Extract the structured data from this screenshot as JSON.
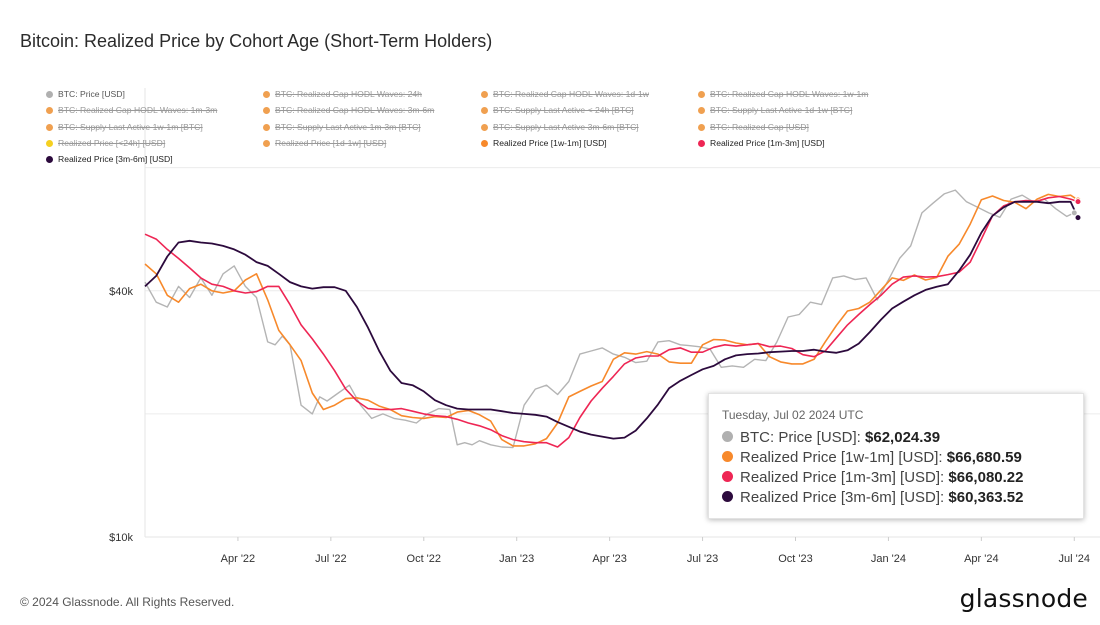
{
  "title": "Bitcoin: Realized Price by Cohort Age (Short-Term Holders)",
  "footer": "© 2024 Glassnode. All Rights Reserved.",
  "logo": "glassnode",
  "legend": [
    {
      "label": "BTC: Price [USD]",
      "color": "#b0b0b0",
      "active": true,
      "muted": true
    },
    {
      "label": "BTC: Realized Cap HODL Waves: 24h",
      "color": "#f0a050",
      "active": false
    },
    {
      "label": "BTC: Realized Cap HODL Waves: 1d-1w",
      "color": "#f0a050",
      "active": false
    },
    {
      "label": "BTC: Realized Cap HODL Waves: 1w-1m",
      "color": "#f0a050",
      "active": false
    },
    {
      "label": "BTC: Realized Cap HODL Waves: 1m-3m",
      "color": "#f0a050",
      "active": false
    },
    {
      "label": "BTC: Realized Cap HODL Waves: 3m-6m",
      "color": "#f0a050",
      "active": false
    },
    {
      "label": "BTC: Supply Last Active < 24h [BTC]",
      "color": "#f0a050",
      "active": false
    },
    {
      "label": "BTC: Supply Last Active 1d-1w [BTC]",
      "color": "#f0a050",
      "active": false
    },
    {
      "label": "BTC: Supply Last Active 1w-1m [BTC]",
      "color": "#f0a050",
      "active": false
    },
    {
      "label": "BTC: Supply Last Active 1m-3m [BTC]",
      "color": "#f0a050",
      "active": false
    },
    {
      "label": "BTC: Supply Last Active 3m-6m [BTC]",
      "color": "#f0a050",
      "active": false
    },
    {
      "label": "BTC: Realized Cap [USD]",
      "color": "#f0a050",
      "active": false
    },
    {
      "label": "Realized Price [<24h] [USD]",
      "color": "#f5d020",
      "active": false
    },
    {
      "label": "Realized Price [1d-1w] [USD]",
      "color": "#f0a050",
      "active": false
    },
    {
      "label": "Realized Price [1w-1m] [USD]",
      "color": "#f7892b",
      "active": true
    },
    {
      "label": "Realized Price [1m-3m] [USD]",
      "color": "#ee2654",
      "active": true
    },
    {
      "label": "Realized Price [3m-6m] [USD]",
      "color": "#2c0a3d",
      "active": true
    }
  ],
  "tooltip": {
    "date": "Tuesday, Jul 02 2024 UTC",
    "rows": [
      {
        "label": "BTC: Price [USD]:",
        "value": "$62,024.39",
        "color": "#b0b0b0"
      },
      {
        "label": "Realized Price [1w-1m] [USD]:",
        "value": "$66,680.59",
        "color": "#f7892b"
      },
      {
        "label": "Realized Price [1m-3m] [USD]:",
        "value": "$66,080.22",
        "color": "#ee2654"
      },
      {
        "label": "Realized Price [3m-6m] [USD]:",
        "value": "$60,363.52",
        "color": "#2c0a3d"
      }
    ]
  },
  "chart_data": {
    "type": "line",
    "title": "Bitcoin: Realized Price by Cohort Age (Short-Term Holders)",
    "yscale": "log",
    "ylim": [
      10000,
      100000
    ],
    "yticks": [
      {
        "label": "$40k",
        "value": 40000
      },
      {
        "label": "$10k",
        "value": 10000
      }
    ],
    "xlim": [
      2022.0,
      2024.51
    ],
    "xticks": [
      {
        "label": "Apr '22",
        "value": 2022.25
      },
      {
        "label": "Jul '22",
        "value": 2022.5
      },
      {
        "label": "Oct '22",
        "value": 2022.75
      },
      {
        "label": "Jan '23",
        "value": 2023.0
      },
      {
        "label": "Apr '23",
        "value": 2023.25
      },
      {
        "label": "Jul '23",
        "value": 2023.5
      },
      {
        "label": "Oct '23",
        "value": 2023.75
      },
      {
        "label": "Jan '24",
        "value": 2024.0
      },
      {
        "label": "Apr '24",
        "value": 2024.25
      },
      {
        "label": "Jul '24",
        "value": 2024.5
      }
    ],
    "series": [
      {
        "name": "BTC: Price [USD]",
        "color": "#b4b4b4",
        "width": 1.4,
        "x": [
          2022.0,
          2022.03,
          2022.06,
          2022.09,
          2022.12,
          2022.15,
          2022.18,
          2022.21,
          2022.24,
          2022.27,
          2022.3,
          2022.33,
          2022.35,
          2022.37,
          2022.39,
          2022.42,
          2022.45,
          2022.47,
          2022.49,
          2022.52,
          2022.55,
          2022.58,
          2022.61,
          2022.64,
          2022.67,
          2022.7,
          2022.73,
          2022.76,
          2022.79,
          2022.82,
          2022.84,
          2022.86,
          2022.88,
          2022.9,
          2022.93,
          2022.96,
          2022.99,
          2023.02,
          2023.05,
          2023.08,
          2023.11,
          2023.14,
          2023.17,
          2023.2,
          2023.23,
          2023.26,
          2023.29,
          2023.32,
          2023.35,
          2023.38,
          2023.41,
          2023.44,
          2023.46,
          2023.49,
          2023.52,
          2023.55,
          2023.58,
          2023.61,
          2023.64,
          2023.67,
          2023.7,
          2023.73,
          2023.76,
          2023.79,
          2023.82,
          2023.85,
          2023.88,
          2023.91,
          2023.94,
          2023.97,
          2024.0,
          2024.03,
          2024.06,
          2024.09,
          2024.12,
          2024.15,
          2024.18,
          2024.21,
          2024.24,
          2024.27,
          2024.3,
          2024.33,
          2024.36,
          2024.39,
          2024.42,
          2024.45,
          2024.48,
          2024.5
        ],
        "y": [
          42000,
          37500,
          36500,
          41000,
          38500,
          43000,
          39000,
          44000,
          46000,
          41000,
          38500,
          30000,
          29500,
          31000,
          29500,
          21000,
          20000,
          22000,
          21500,
          22500,
          23500,
          21000,
          19500,
          20000,
          19500,
          19300,
          19000,
          20000,
          20600,
          20500,
          16800,
          17000,
          16800,
          17200,
          16800,
          16600,
          16550,
          21000,
          23000,
          23500,
          22300,
          24000,
          28000,
          28500,
          29000,
          28000,
          27500,
          26700,
          26900,
          30000,
          30200,
          29500,
          29400,
          29200,
          28800,
          26000,
          26200,
          26000,
          27200,
          27000,
          30000,
          34500,
          35000,
          37500,
          37000,
          43000,
          43500,
          42600,
          43000,
          38000,
          42500,
          48000,
          51500,
          62000,
          65500,
          69000,
          70500,
          66000,
          64000,
          62000,
          60500,
          67000,
          68500,
          66000,
          67000,
          63500,
          60800,
          62024
        ]
      },
      {
        "name": "Realized Price [1w-1m] [USD]",
        "color": "#f7892b",
        "width": 1.6,
        "x": [
          2022.0,
          2022.03,
          2022.06,
          2022.09,
          2022.12,
          2022.15,
          2022.18,
          2022.21,
          2022.24,
          2022.27,
          2022.3,
          2022.33,
          2022.36,
          2022.39,
          2022.42,
          2022.45,
          2022.48,
          2022.51,
          2022.54,
          2022.57,
          2022.6,
          2022.63,
          2022.66,
          2022.69,
          2022.72,
          2022.75,
          2022.78,
          2022.81,
          2022.84,
          2022.87,
          2022.9,
          2022.93,
          2022.96,
          2022.99,
          2023.02,
          2023.05,
          2023.08,
          2023.11,
          2023.14,
          2023.17,
          2023.2,
          2023.23,
          2023.26,
          2023.29,
          2023.32,
          2023.35,
          2023.38,
          2023.41,
          2023.44,
          2023.47,
          2023.5,
          2023.53,
          2023.56,
          2023.59,
          2023.62,
          2023.65,
          2023.68,
          2023.71,
          2023.74,
          2023.77,
          2023.8,
          2023.83,
          2023.86,
          2023.89,
          2023.92,
          2023.95,
          2023.98,
          2024.01,
          2024.04,
          2024.07,
          2024.1,
          2024.13,
          2024.16,
          2024.19,
          2024.22,
          2024.25,
          2024.28,
          2024.31,
          2024.34,
          2024.37,
          2024.4,
          2024.43,
          2024.46,
          2024.49,
          2024.51
        ],
        "y": [
          46500,
          44000,
          39000,
          37500,
          40500,
          41500,
          40000,
          39500,
          40000,
          42500,
          44000,
          38000,
          32000,
          29500,
          27000,
          22500,
          20500,
          21000,
          21800,
          21900,
          21600,
          20900,
          20500,
          19800,
          19600,
          19500,
          19700,
          19600,
          20200,
          20400,
          19900,
          19200,
          17300,
          16700,
          16700,
          16900,
          17400,
          19000,
          22000,
          22700,
          23400,
          24000,
          27200,
          28200,
          28000,
          28400,
          28000,
          26800,
          26600,
          26600,
          29500,
          30400,
          30300,
          29800,
          29500,
          29700,
          27600,
          26800,
          26500,
          26500,
          27200,
          30000,
          32900,
          35700,
          36200,
          37500,
          40200,
          43000,
          42400,
          43700,
          42500,
          43100,
          48600,
          52000,
          58200,
          66800,
          68200,
          66500,
          65800,
          63500,
          67000,
          68800,
          68000,
          68500,
          66680
        ]
      },
      {
        "name": "Realized Price [1m-3m] [USD]",
        "color": "#ee2654",
        "width": 1.6,
        "x": [
          2022.0,
          2022.03,
          2022.06,
          2022.09,
          2022.12,
          2022.15,
          2022.18,
          2022.21,
          2022.24,
          2022.27,
          2022.3,
          2022.33,
          2022.36,
          2022.39,
          2022.42,
          2022.45,
          2022.48,
          2022.51,
          2022.54,
          2022.57,
          2022.6,
          2022.63,
          2022.66,
          2022.69,
          2022.72,
          2022.75,
          2022.78,
          2022.81,
          2022.84,
          2022.87,
          2022.9,
          2022.93,
          2022.96,
          2022.99,
          2023.02,
          2023.05,
          2023.08,
          2023.11,
          2023.14,
          2023.17,
          2023.2,
          2023.23,
          2023.26,
          2023.29,
          2023.32,
          2023.35,
          2023.38,
          2023.41,
          2023.44,
          2023.47,
          2023.5,
          2023.53,
          2023.56,
          2023.59,
          2023.62,
          2023.65,
          2023.68,
          2023.71,
          2023.74,
          2023.77,
          2023.8,
          2023.83,
          2023.86,
          2023.89,
          2023.92,
          2023.95,
          2023.98,
          2024.01,
          2024.04,
          2024.07,
          2024.1,
          2024.13,
          2024.16,
          2024.19,
          2024.22,
          2024.25,
          2024.28,
          2024.31,
          2024.34,
          2024.37,
          2024.4,
          2024.43,
          2024.46,
          2024.49,
          2024.51
        ],
        "y": [
          55000,
          53500,
          50500,
          48000,
          45500,
          43000,
          41500,
          41000,
          40000,
          39500,
          39800,
          41000,
          41000,
          37000,
          33000,
          30500,
          28000,
          25500,
          23000,
          21500,
          20600,
          20500,
          20500,
          20600,
          20300,
          20000,
          19800,
          19700,
          19400,
          19000,
          18700,
          18300,
          17700,
          17300,
          17100,
          17000,
          17000,
          16600,
          17500,
          19600,
          21500,
          23100,
          24700,
          26500,
          27400,
          27700,
          27700,
          28700,
          29000,
          28300,
          28300,
          29100,
          29500,
          29300,
          29500,
          29700,
          29200,
          29300,
          28900,
          27900,
          27600,
          28500,
          30700,
          33000,
          35000,
          37000,
          39000,
          41500,
          43200,
          43500,
          43200,
          43300,
          43800,
          44400,
          47000,
          53500,
          61000,
          64500,
          66000,
          66500,
          66200,
          67500,
          68000,
          67000,
          66080
        ]
      },
      {
        "name": "Realized Price [3m-6m] [USD]",
        "color": "#2c0a3d",
        "width": 1.8,
        "x": [
          2022.0,
          2022.03,
          2022.06,
          2022.09,
          2022.12,
          2022.15,
          2022.18,
          2022.21,
          2022.24,
          2022.27,
          2022.3,
          2022.33,
          2022.36,
          2022.39,
          2022.42,
          2022.45,
          2022.48,
          2022.51,
          2022.54,
          2022.57,
          2022.6,
          2022.63,
          2022.66,
          2022.69,
          2022.72,
          2022.75,
          2022.78,
          2022.81,
          2022.84,
          2022.87,
          2022.9,
          2022.93,
          2022.96,
          2022.99,
          2023.02,
          2023.05,
          2023.08,
          2023.11,
          2023.14,
          2023.17,
          2023.2,
          2023.23,
          2023.26,
          2023.29,
          2023.32,
          2023.35,
          2023.38,
          2023.41,
          2023.44,
          2023.47,
          2023.5,
          2023.53,
          2023.56,
          2023.59,
          2023.62,
          2023.65,
          2023.68,
          2023.71,
          2023.74,
          2023.77,
          2023.8,
          2023.83,
          2023.86,
          2023.89,
          2023.92,
          2023.95,
          2023.98,
          2024.01,
          2024.04,
          2024.07,
          2024.1,
          2024.13,
          2024.16,
          2024.19,
          2024.22,
          2024.25,
          2024.28,
          2024.31,
          2024.34,
          2024.37,
          2024.4,
          2024.43,
          2024.46,
          2024.49,
          2024.51
        ],
        "y": [
          41000,
          43500,
          48500,
          52500,
          53000,
          52500,
          52200,
          51500,
          50500,
          49000,
          47000,
          46000,
          44000,
          42000,
          41000,
          40500,
          40800,
          40800,
          40000,
          36500,
          32500,
          28500,
          25500,
          23800,
          23500,
          22700,
          21600,
          21000,
          20600,
          20500,
          20500,
          20500,
          20300,
          20100,
          20000,
          19900,
          19700,
          19100,
          18600,
          18100,
          17800,
          17600,
          17400,
          17500,
          18200,
          19500,
          21100,
          23100,
          24100,
          24900,
          25700,
          26200,
          27200,
          27800,
          28000,
          28100,
          28300,
          28400,
          28500,
          28500,
          28700,
          28400,
          28200,
          28600,
          29700,
          31700,
          34000,
          36200,
          37600,
          39000,
          40200,
          40900,
          41500,
          44800,
          49000,
          55500,
          61000,
          64000,
          66000,
          66000,
          66000,
          65500,
          66000,
          66000,
          60363
        ]
      }
    ]
  }
}
